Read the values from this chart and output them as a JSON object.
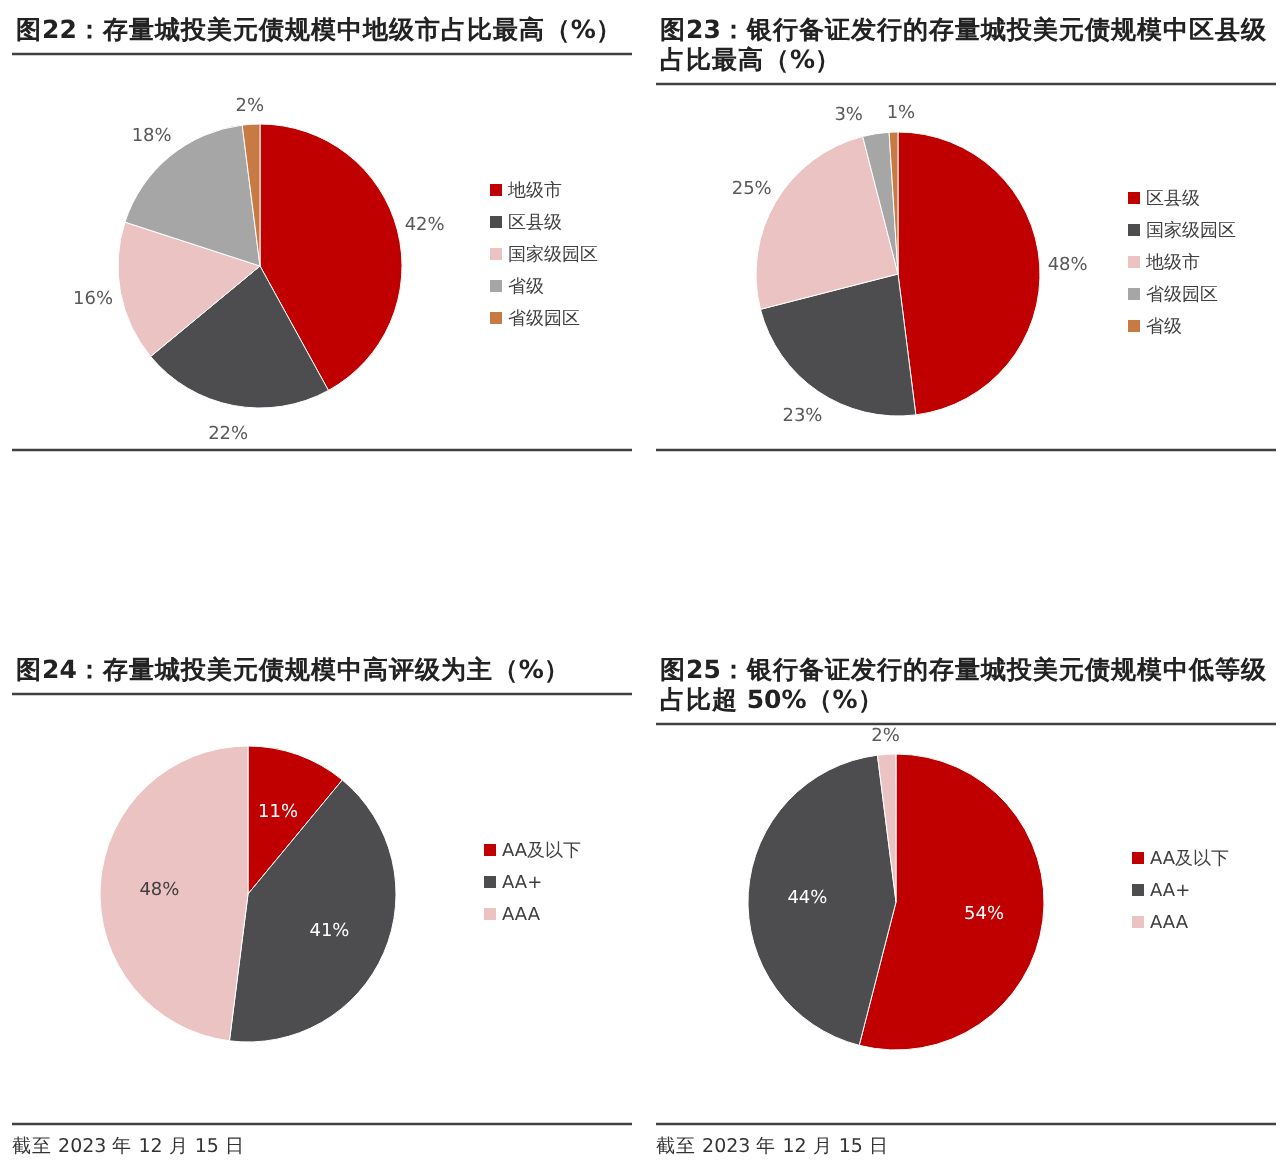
{
  "chart_data": [
    {
      "type": "pie",
      "title": "图22：存量城投美元债规模中地级市占比最高（%）",
      "categories": [
        "地级市",
        "区县级",
        "国家级园区",
        "省级",
        "省级园区"
      ],
      "values": [
        42,
        22,
        16,
        18,
        2
      ],
      "value_labels": [
        "42%",
        "22%",
        "16%",
        "18%",
        "2%"
      ],
      "colors": [
        "#c00000",
        "#4d4d4f",
        "#ecc3c3",
        "#a6a6a6",
        "#c87a45"
      ],
      "legend": "right"
    },
    {
      "type": "pie",
      "title": "图23：银行备证发行的存量城投美元债规模中区县级占比最高（%）",
      "categories": [
        "区县级",
        "国家级园区",
        "地级市",
        "省级园区",
        "省级"
      ],
      "values": [
        48,
        23,
        25,
        3,
        1
      ],
      "value_labels": [
        "48%",
        "23%",
        "25%",
        "3%",
        "1%"
      ],
      "colors": [
        "#c00000",
        "#4d4d4f",
        "#ecc3c3",
        "#a6a6a6",
        "#c87a45"
      ],
      "legend": "right"
    },
    {
      "type": "pie",
      "title": "图24：存量城投美元债规模中高评级为主（%）",
      "categories": [
        "AA及以下",
        "AA+",
        "AAA"
      ],
      "values": [
        11,
        41,
        48
      ],
      "value_labels": [
        "11%",
        "41%",
        "48%"
      ],
      "colors": [
        "#c00000",
        "#4d4d4f",
        "#ecc3c3"
      ],
      "legend": "right",
      "annotations": [
        "截至 2023 年 12 月 15 日"
      ]
    },
    {
      "type": "pie",
      "title": "图25：银行备证发行的存量城投美元债规模中低等级占比超 50%（%）",
      "categories": [
        "AA及以下",
        "AA+",
        "AAA"
      ],
      "values": [
        54,
        44,
        2
      ],
      "value_labels": [
        "54%",
        "44%",
        "2%"
      ],
      "colors": [
        "#c00000",
        "#4d4d4f",
        "#ecc3c3"
      ],
      "legend": "right",
      "annotations": [
        "截至 2023 年 12 月 15 日"
      ]
    }
  ]
}
